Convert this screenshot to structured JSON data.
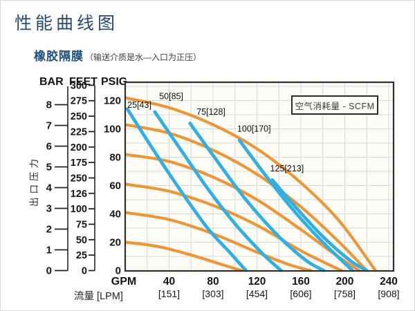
{
  "page": {
    "title": "性能曲线图",
    "subtitle": "橡胶隔膜",
    "subtitle_note": "（输送介质是水—入口为正压）",
    "title_color": "#27496d"
  },
  "chart_data": {
    "type": "line",
    "title": "空气消耗量 - SCFM",
    "y_axis_title": "出口压力",
    "x_axis": {
      "label_primary": "GPM",
      "label_secondary": "流量 [LPM]",
      "ticks": [
        {
          "gpm": 40,
          "lpm": "[151]"
        },
        {
          "gpm": 80,
          "lpm": "[303]"
        },
        {
          "gpm": 120,
          "lpm": "[454]"
        },
        {
          "gpm": 160,
          "lpm": "[606]"
        },
        {
          "gpm": 200,
          "lpm": "[758]"
        },
        {
          "gpm": 240,
          "lpm": "[908]"
        }
      ]
    },
    "y_axes": {
      "bar": {
        "label": "BAR",
        "ticks": [
          8,
          7,
          6,
          5,
          4,
          3,
          2,
          1,
          0
        ]
      },
      "feet": {
        "label": "FEET",
        "ticks": [
          "300",
          "275",
          "250",
          "225",
          "200",
          "175",
          "250",
          "126",
          "100",
          "75",
          "50",
          "25",
          "0"
        ]
      },
      "psig": {
        "label": "PSIG",
        "ticks": [
          120,
          100,
          80,
          60,
          40,
          20,
          0
        ]
      }
    },
    "xlim": [
      0,
      244
    ],
    "ylim": [
      0,
      133
    ],
    "grid": {
      "x_step_gpm": 20,
      "y_step_psig": 10,
      "color": "#d7d7d7"
    },
    "frame_color": "#2e2e2e",
    "plot_bg": "#fdfcf7",
    "series": [
      {
        "name": "performance-120psig",
        "group": "performance",
        "color": "#EC9638",
        "points": [
          [
            0,
            122
          ],
          [
            40,
            115
          ],
          [
            80,
            103
          ],
          [
            120,
            86
          ],
          [
            160,
            62
          ],
          [
            195,
            35
          ],
          [
            228,
            0
          ]
        ]
      },
      {
        "name": "performance-100psig",
        "group": "performance",
        "color": "#EC9638",
        "points": [
          [
            0,
            103
          ],
          [
            40,
            97
          ],
          [
            80,
            85
          ],
          [
            120,
            68
          ],
          [
            160,
            45
          ],
          [
            195,
            20
          ],
          [
            220,
            0
          ]
        ]
      },
      {
        "name": "performance-80psig",
        "group": "performance",
        "color": "#EC9638",
        "points": [
          [
            0,
            82
          ],
          [
            40,
            77
          ],
          [
            80,
            66
          ],
          [
            120,
            50
          ],
          [
            160,
            29
          ],
          [
            190,
            12
          ],
          [
            213,
            0
          ]
        ]
      },
      {
        "name": "performance-60psig",
        "group": "performance",
        "color": "#EC9638",
        "points": [
          [
            0,
            61
          ],
          [
            40,
            56
          ],
          [
            80,
            46
          ],
          [
            120,
            32
          ],
          [
            160,
            14
          ],
          [
            197,
            0
          ]
        ]
      },
      {
        "name": "performance-40psig",
        "group": "performance",
        "color": "#EC9638",
        "points": [
          [
            0,
            41
          ],
          [
            40,
            36
          ],
          [
            80,
            26
          ],
          [
            120,
            13
          ],
          [
            150,
            4
          ],
          [
            169,
            0
          ]
        ]
      },
      {
        "name": "performance-20psig",
        "group": "performance",
        "color": "#EC9638",
        "points": [
          [
            0,
            20
          ],
          [
            30,
            17
          ],
          [
            60,
            11
          ],
          [
            85,
            5
          ],
          [
            106,
            0
          ]
        ]
      },
      {
        "name": "air-25-scfm",
        "group": "air-consumption",
        "label": "25[43]",
        "color": "#35AEDF",
        "points": [
          [
            2,
            114
          ],
          [
            25,
            86
          ],
          [
            50,
            57
          ],
          [
            75,
            30
          ],
          [
            95,
            13
          ],
          [
            110,
            0
          ]
        ],
        "label_pos": [
          2,
          115
        ]
      },
      {
        "name": "air-50-scfm",
        "group": "air-consumption",
        "label": "50[85]",
        "color": "#35AEDF",
        "points": [
          [
            27,
            112
          ],
          [
            50,
            86
          ],
          [
            75,
            58
          ],
          [
            100,
            33
          ],
          [
            125,
            12
          ],
          [
            142,
            0
          ]
        ],
        "label_pos": [
          31,
          121
        ]
      },
      {
        "name": "air-75-scfm",
        "group": "air-consumption",
        "label": "75[128]",
        "color": "#35AEDF",
        "points": [
          [
            59,
            104
          ],
          [
            85,
            76
          ],
          [
            110,
            50
          ],
          [
            140,
            24
          ],
          [
            165,
            7
          ],
          [
            181,
            0
          ]
        ],
        "label_pos": [
          65,
          110
        ]
      },
      {
        "name": "air-100-scfm",
        "group": "air-consumption",
        "label": "100[170]",
        "color": "#35AEDF",
        "points": [
          [
            104,
            92
          ],
          [
            130,
            65
          ],
          [
            155,
            41
          ],
          [
            180,
            20
          ],
          [
            207,
            0
          ]
        ],
        "label_pos": [
          102,
          98
        ]
      },
      {
        "name": "air-125-scfm",
        "group": "air-consumption",
        "label": "125[213]",
        "color": "#35AEDF",
        "points": [
          [
            134,
            64
          ],
          [
            155,
            45
          ],
          [
            180,
            24
          ],
          [
            205,
            7
          ],
          [
            220,
            0
          ]
        ],
        "label_pos": [
          132,
          70
        ]
      }
    ]
  }
}
